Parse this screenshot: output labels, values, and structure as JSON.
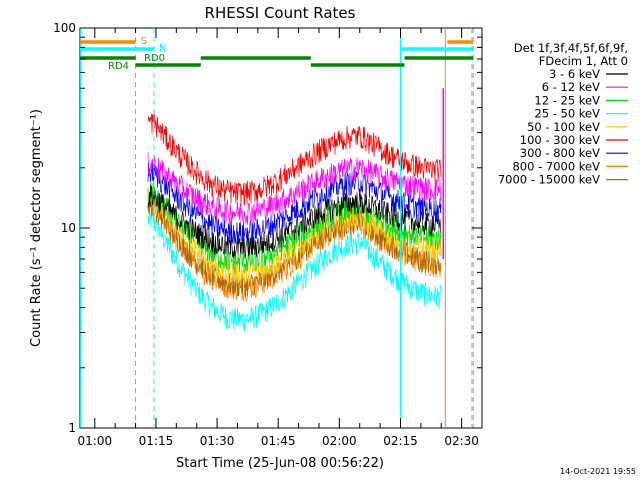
{
  "chart_data": {
    "type": "line",
    "title": "RHESSI Count Rates",
    "xlabel": "Start Time (25-Jun-08 00:56:22)",
    "ylabel": "Count Rate (s⁻¹ detector segment⁻¹)",
    "x_range": [
      "00:56:22",
      "02:35:00"
    ],
    "yscale": "log",
    "ylim": [
      1,
      100
    ],
    "x_ticks": [
      "01:00",
      "01:15",
      "01:30",
      "01:45",
      "02:00",
      "02:15",
      "02:30"
    ],
    "y_ticks": [
      "1",
      "10",
      "100"
    ],
    "legend": {
      "placement": "right",
      "header": [
        "Det 1f,3f,4f,5f,6f,9f,",
        "FDecim 1, Att 0"
      ]
    },
    "series": [
      {
        "name": "3 - 6 keV",
        "color": "#000000",
        "baseline": 14.5,
        "dip": 8.0,
        "hump": 13.5
      },
      {
        "name": "6 - 12 keV",
        "color": "#ff00ff",
        "baseline": 21,
        "dip": 12,
        "hump": 20
      },
      {
        "name": "12 - 25 keV",
        "color": "#00dd00",
        "baseline": 15,
        "dip": 6.8,
        "hump": 12.5
      },
      {
        "name": "25 - 50 keV",
        "color": "#00ffff",
        "baseline": 11,
        "dip": 3.5,
        "hump": 8.5
      },
      {
        "name": "50 - 100 keV",
        "color": "#ffcc00",
        "baseline": 14,
        "dip": 6.0,
        "hump": 11.5
      },
      {
        "name": "100 - 300 keV",
        "color": "#ff0000",
        "baseline": 34,
        "dip": 15,
        "hump": 29
      },
      {
        "name": "300 - 800 keV",
        "color": "#0000ff",
        "baseline": 19,
        "dip": 9.5,
        "hump": 17
      },
      {
        "name": "800 - 7000 keV",
        "color": "#ff8800",
        "baseline": 13,
        "dip": 5.0,
        "hump": 10.5
      },
      {
        "name": "7000 - 15000 keV",
        "color": "#aa6600",
        "baseline": 13,
        "dip": 5.2,
        "hump": 10.8
      }
    ],
    "data_time_range": [
      "01:13:00",
      "02:25:00"
    ],
    "flags": [
      {
        "label": "S",
        "color": "#ff8800"
      },
      {
        "label": "N",
        "color": "#00ffff"
      },
      {
        "label": "RD0",
        "color": "#008800"
      },
      {
        "label": "RD4",
        "color": "#008800"
      }
    ],
    "timestamp": "14-Oct-2021 19:55"
  }
}
